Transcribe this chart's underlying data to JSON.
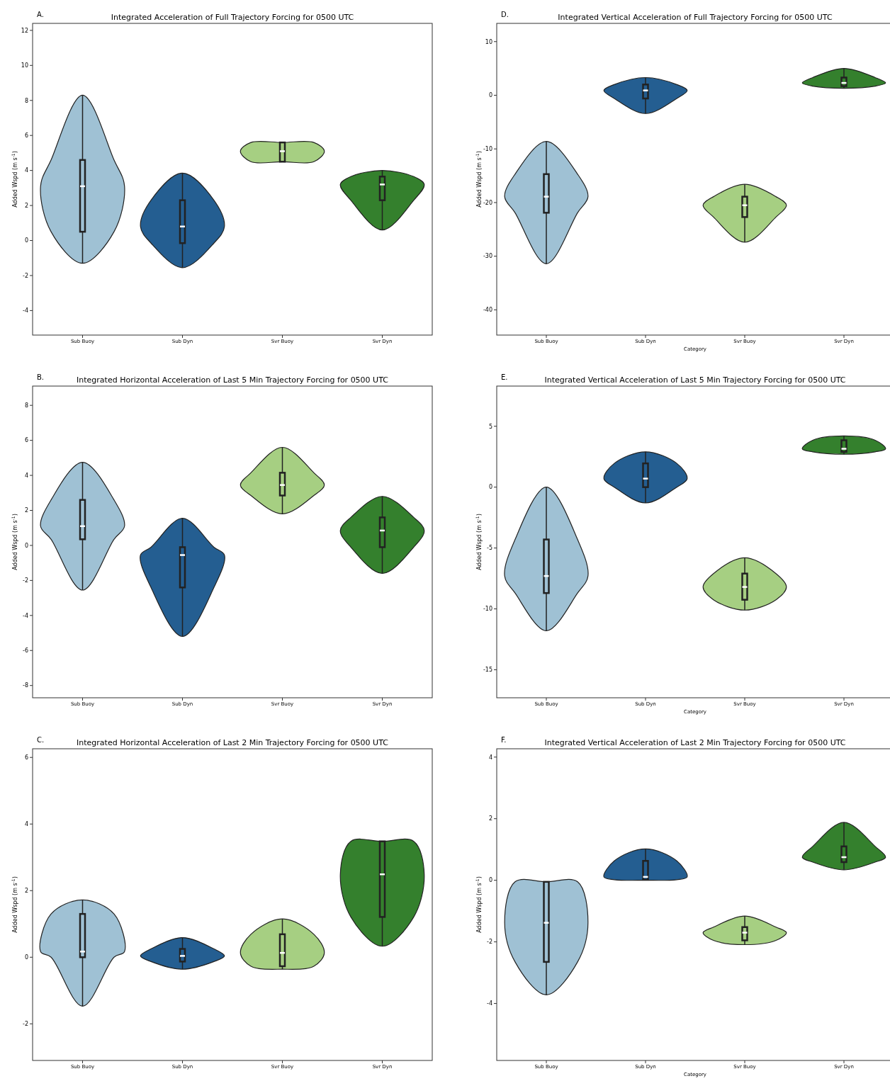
{
  "chart_data": [
    {
      "type": "box",
      "title": "Integrated Acceleration of Full Trajectory Forcing for 0500 UTC",
      "annotations": [
        "A."
      ],
      "ylabel": "Added Wspd (m s$^{-1}$)",
      "categories": [
        "Sub Buoy",
        "Sub Dyn",
        "Svr Buoy",
        "Svr Dyn"
      ],
      "colors": [
        "#9fc1d4",
        "#245e91",
        "#a6cf82",
        "#34802d"
      ],
      "ylim": [
        -5.4,
        12.4
      ],
      "yticks": [
        -4,
        -2,
        0,
        2,
        4,
        6,
        8,
        10,
        12
      ],
      "grid": false,
      "boxes": [
        {
          "low": -1.3,
          "q1": 0.5,
          "median": 3.1,
          "q3": 4.6,
          "high": 8.3
        },
        {
          "low": -1.55,
          "q1": -0.15,
          "median": 0.8,
          "q3": 2.3,
          "high": 3.85
        },
        {
          "low": 4.5,
          "q1": 4.5,
          "median": 5.1,
          "q3": 5.6,
          "high": 5.6
        },
        {
          "low": 0.6,
          "q1": 2.3,
          "median": 3.2,
          "q3": 3.65,
          "high": 4.0
        }
      ]
    },
    {
      "type": "box",
      "title": "Integrated Vertical Acceleration of Full Trajectory Forcing for 0500 UTC",
      "annotations": [
        "D."
      ],
      "ylabel": "Added Wspd (m s$^{-1}$)",
      "xlabel": "Category",
      "categories": [
        "Sub Buoy",
        "Sub Dyn",
        "Svr Buoy",
        "Svr Dyn"
      ],
      "colors": [
        "#9fc1d4",
        "#245e91",
        "#a6cf82",
        "#34802d"
      ],
      "ylim": [
        -44.7,
        13.4
      ],
      "yticks": [
        -40,
        -30,
        -20,
        -10,
        0,
        10
      ],
      "grid": false,
      "boxes": [
        {
          "low": -31.4,
          "q1": -21.9,
          "median": -18.9,
          "q3": -14.7,
          "high": -8.6
        },
        {
          "low": -3.4,
          "q1": -0.6,
          "median": 0.9,
          "q3": 2.0,
          "high": 3.3
        },
        {
          "low": -27.4,
          "q1": -22.7,
          "median": -20.5,
          "q3": -18.9,
          "high": -16.6
        },
        {
          "low": 1.3,
          "q1": 1.7,
          "median": 2.3,
          "q3": 3.3,
          "high": 5.0
        }
      ]
    },
    {
      "type": "box",
      "title": "Integrated Horizontal Acceleration of Last 5 Min Trajectory Forcing for 0500 UTC",
      "annotations": [
        "B."
      ],
      "ylabel": "Added Wspd (m s$^{-1}$)",
      "categories": [
        "Sub Buoy",
        "Sub Dyn",
        "Svr Buoy",
        "Svr Dyn"
      ],
      "colors": [
        "#9fc1d4",
        "#245e91",
        "#a6cf82",
        "#34802d"
      ],
      "ylim": [
        -8.7,
        9.1
      ],
      "yticks": [
        -8,
        -6,
        -4,
        -2,
        0,
        2,
        4,
        6,
        8
      ],
      "grid": false,
      "boxes": [
        {
          "low": -2.55,
          "q1": 0.35,
          "median": 1.1,
          "q3": 2.6,
          "high": 4.75
        },
        {
          "low": -5.2,
          "q1": -2.4,
          "median": -0.55,
          "q3": -0.1,
          "high": 1.55
        },
        {
          "low": 1.8,
          "q1": 2.85,
          "median": 3.45,
          "q3": 4.15,
          "high": 5.6
        },
        {
          "low": -1.6,
          "q1": -0.1,
          "median": 0.85,
          "q3": 1.6,
          "high": 2.8
        }
      ]
    },
    {
      "type": "box",
      "title": "Integrated Vertical Acceleration of Last 5 Min Trajectory Forcing for 0500 UTC",
      "annotations": [
        "E."
      ],
      "ylabel": "Added Wspd (m s$^{-1}$)",
      "xlabel": "Category",
      "categories": [
        "Sub Buoy",
        "Sub Dyn",
        "Svr Buoy",
        "Svr Dyn"
      ],
      "colors": [
        "#9fc1d4",
        "#245e91",
        "#a6cf82",
        "#34802d"
      ],
      "ylim": [
        -17.3,
        8.3
      ],
      "yticks": [
        -15,
        -10,
        -5,
        0,
        5
      ],
      "grid": false,
      "boxes": [
        {
          "low": -11.8,
          "q1": -8.7,
          "median": -7.3,
          "q3": -4.3,
          "high": 0
        },
        {
          "low": -1.3,
          "q1": 0,
          "median": 0.7,
          "q3": 1.95,
          "high": 2.9
        },
        {
          "low": -10.1,
          "q1": -9.25,
          "median": -8.2,
          "q3": -7.1,
          "high": -5.8
        },
        {
          "low": 2.7,
          "q1": 2.9,
          "median": 3.15,
          "q3": 3.85,
          "high": 4.2
        }
      ]
    },
    {
      "type": "box",
      "title": "Integrated Horizontal Acceleration of Last 2 Min Trajectory Forcing for 0500 UTC",
      "annotations": [
        "C."
      ],
      "ylabel": "Added Wspd (m s$^{-1}$)",
      "categories": [
        "Sub Buoy",
        "Sub Dyn",
        "Svr Buoy",
        "Svr Dyn"
      ],
      "colors": [
        "#9fc1d4",
        "#245e91",
        "#a6cf82",
        "#34802d"
      ],
      "ylim": [
        -3.1,
        6.26
      ],
      "yticks": [
        -2,
        0,
        2,
        4,
        6
      ],
      "grid": false,
      "boxes": [
        {
          "low": -1.47,
          "q1": 0,
          "median": 0.17,
          "q3": 1.3,
          "high": 1.72
        },
        {
          "low": -0.36,
          "q1": -0.13,
          "median": 0.04,
          "q3": 0.25,
          "high": 0.59
        },
        {
          "low": -0.36,
          "q1": -0.27,
          "median": 0.13,
          "q3": 0.69,
          "high": 1.15
        },
        {
          "low": 0.33,
          "q1": 1.21,
          "median": 2.49,
          "q3": 3.48,
          "high": 3.48
        }
      ]
    },
    {
      "type": "box",
      "title": "Integrated Vertical Acceleration of Last 2 Min Trajectory Forcing for 0500 UTC",
      "annotations": [
        "F."
      ],
      "ylabel": "Added Wspd (m s$^{-1}$)",
      "xlabel": "Category",
      "categories": [
        "Sub Buoy",
        "Sub Dyn",
        "Svr Buoy",
        "Svr Dyn"
      ],
      "colors": [
        "#9fc1d4",
        "#245e91",
        "#a6cf82",
        "#34802d"
      ],
      "ylim": [
        -5.85,
        4.27
      ],
      "yticks": [
        -4,
        -2,
        0,
        2,
        4
      ],
      "grid": false,
      "boxes": [
        {
          "low": -3.72,
          "q1": -2.65,
          "median": -1.38,
          "q3": -0.05,
          "high": -0.05
        },
        {
          "low": 0,
          "q1": 0.02,
          "median": 0.11,
          "q3": 0.63,
          "high": 1.02
        },
        {
          "low": -2.09,
          "q1": -1.95,
          "median": -1.7,
          "q3": -1.52,
          "high": -1.16
        },
        {
          "low": 0.34,
          "q1": 0.59,
          "median": 0.75,
          "q3": 1.1,
          "high": 1.88
        }
      ]
    }
  ]
}
